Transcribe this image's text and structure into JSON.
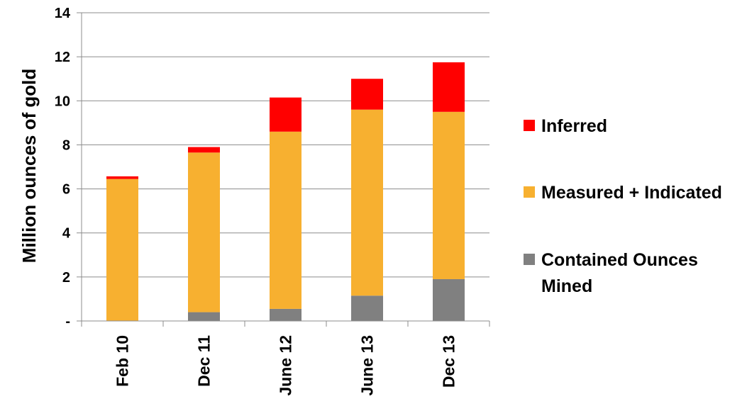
{
  "chart_data": {
    "type": "bar",
    "stacked": true,
    "ylabel": "Million ounces of gold",
    "xlabel": "",
    "ylim": [
      0,
      14
    ],
    "yticks": [
      0,
      2,
      4,
      6,
      8,
      10,
      12,
      14
    ],
    "ytick_labels": [
      "-",
      "2",
      "4",
      "6",
      "8",
      "10",
      "12",
      "14"
    ],
    "grid": true,
    "legend_position": "right",
    "categories": [
      "Feb 10",
      "Dec 11",
      "June 12",
      "June 13",
      "Dec 13"
    ],
    "series": [
      {
        "name": "Contained Ounces Mined",
        "color": "#808080",
        "values": [
          0,
          0.4,
          0.55,
          1.15,
          1.9
        ]
      },
      {
        "name": "Measured + Indicated",
        "color": "#F7B030",
        "values": [
          6.45,
          7.25,
          8.05,
          8.45,
          7.6
        ]
      },
      {
        "name": "Inferred",
        "color": "#FF0000",
        "values": [
          0.12,
          0.25,
          1.55,
          1.4,
          2.25
        ]
      }
    ],
    "legend_order": [
      "Inferred",
      "Measured + Indicated",
      "Contained Ounces Mined"
    ]
  }
}
